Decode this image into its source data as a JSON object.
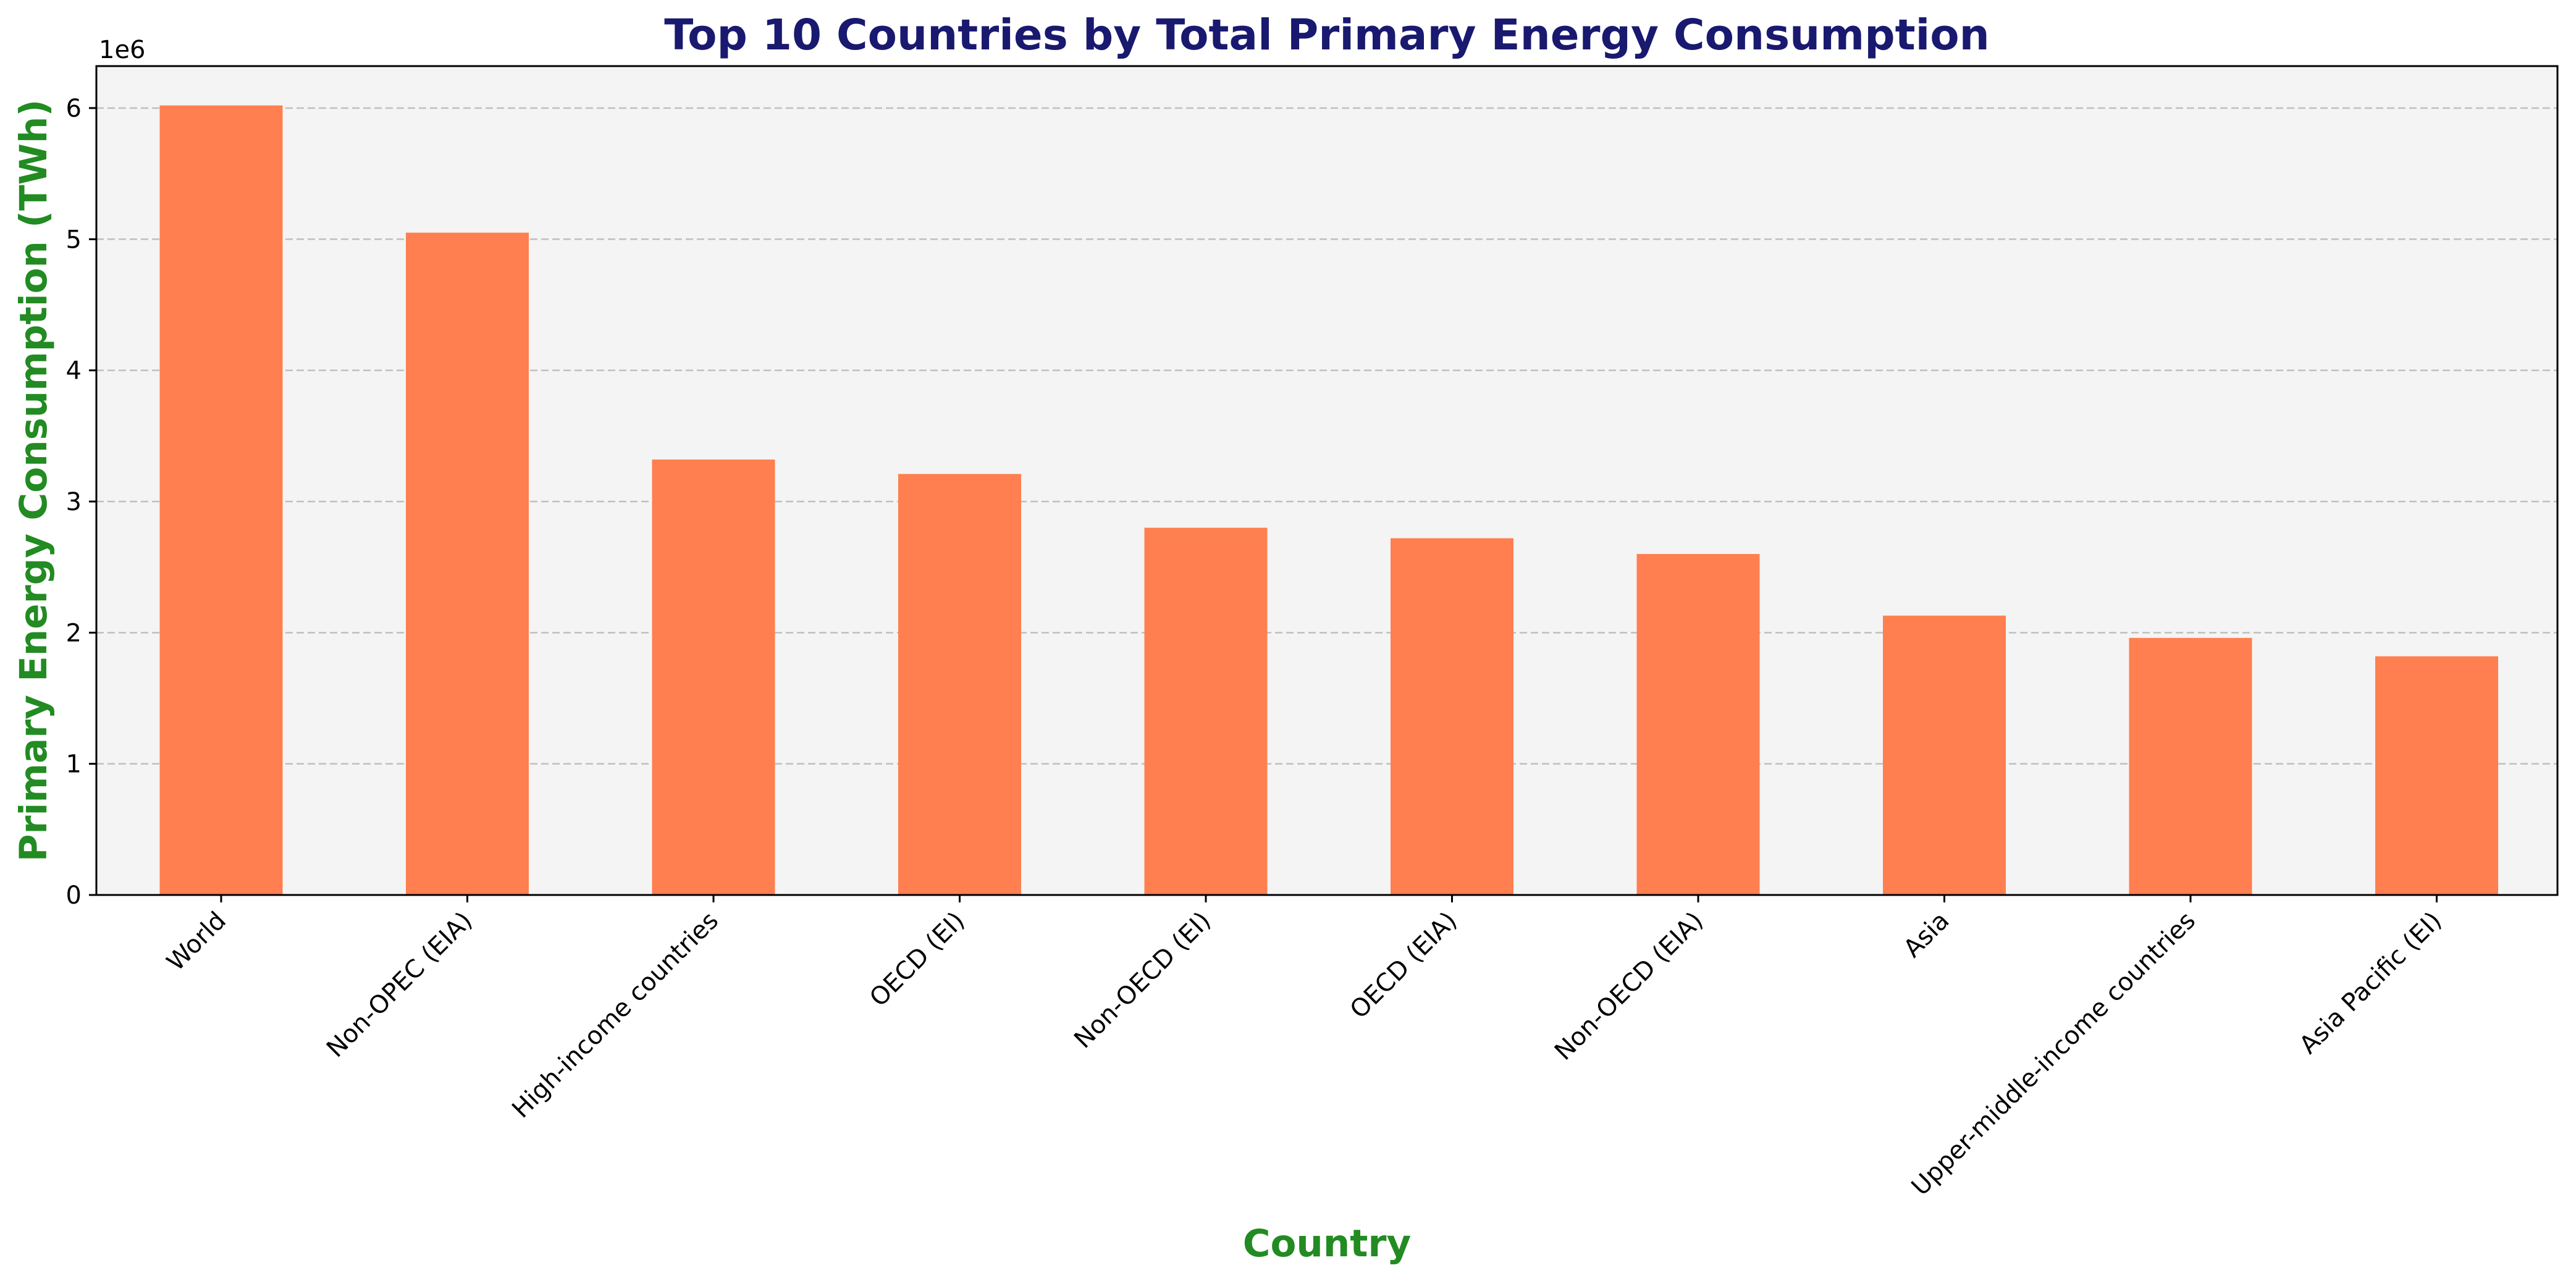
{
  "chart_data": {
    "type": "bar",
    "title": "Top 10 Countries by Total Primary Energy Consumption",
    "xlabel": "Country",
    "ylabel": "Primary Energy Consumption (TWh)",
    "y_offset_label": "1e6",
    "categories": [
      "World",
      "Non-OPEC (EIA)",
      "High-income countries",
      "OECD (EI)",
      "Non-OECD (EI)",
      "OECD (EIA)",
      "Non-OECD (EIA)",
      "Asia",
      "Upper-middle-income countries",
      "Asia Pacific (EI)"
    ],
    "values": [
      6020000,
      5050000,
      3320000,
      3210000,
      2800000,
      2720000,
      2600000,
      2130000,
      1960000,
      1820000
    ],
    "ylim": [
      0,
      6320000
    ],
    "yticks": [
      0,
      1000000,
      2000000,
      3000000,
      4000000,
      5000000,
      6000000
    ],
    "ytick_labels": [
      "0",
      "1",
      "2",
      "3",
      "4",
      "5",
      "6"
    ],
    "grid": "y-dashed",
    "colors": {
      "bar": "#ff7f50",
      "plot_background": "#f4f4f4",
      "grid": "#bfbfbf",
      "title": "#191970",
      "axis_label": "#228b22"
    }
  }
}
